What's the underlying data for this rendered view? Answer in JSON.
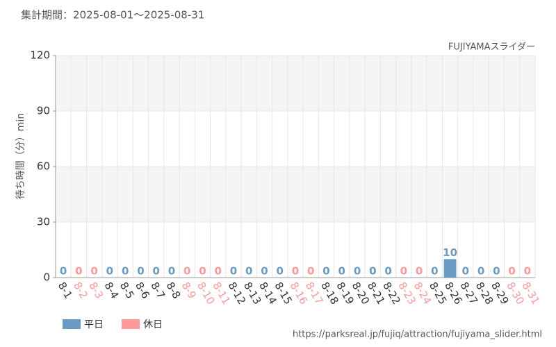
{
  "chart_data": {
    "type": "bar",
    "title": "集計期間：2025-08-01～2025-08-31",
    "subtitle": "FUJIYAMAスライダー",
    "y_label": "待ち時間（分）min",
    "source": "https://parksreal.jp/fujiq/attraction/fujiyama_slider.html",
    "categories": [
      "8-1",
      "8-2",
      "8-3",
      "8-4",
      "8-5",
      "8-6",
      "8-7",
      "8-8",
      "8-9",
      "8-10",
      "8-11",
      "8-12",
      "8-13",
      "8-14",
      "8-15",
      "8-16",
      "8-17",
      "8-18",
      "8-19",
      "8-20",
      "8-21",
      "8-22",
      "8-23",
      "8-24",
      "8-25",
      "8-26",
      "8-27",
      "8-28",
      "8-29",
      "8-30",
      "8-31"
    ],
    "series": [
      {
        "name": "平日",
        "color": "#6b9bc3",
        "values": [
          0,
          null,
          null,
          0,
          0,
          0,
          0,
          0,
          null,
          null,
          null,
          0,
          0,
          0,
          0,
          null,
          null,
          0,
          0,
          0,
          0,
          0,
          null,
          null,
          0,
          10,
          0,
          0,
          0,
          null,
          null
        ]
      },
      {
        "name": "休日",
        "color": "#ff9999",
        "values": [
          null,
          0,
          0,
          null,
          null,
          null,
          null,
          null,
          0,
          0,
          0,
          null,
          null,
          null,
          null,
          0,
          0,
          null,
          null,
          null,
          null,
          null,
          0,
          0,
          null,
          null,
          null,
          null,
          null,
          0,
          0
        ]
      }
    ],
    "ylim": [
      0,
      120
    ],
    "yticks": [
      0,
      30,
      60,
      90,
      120
    ],
    "grid": true
  }
}
